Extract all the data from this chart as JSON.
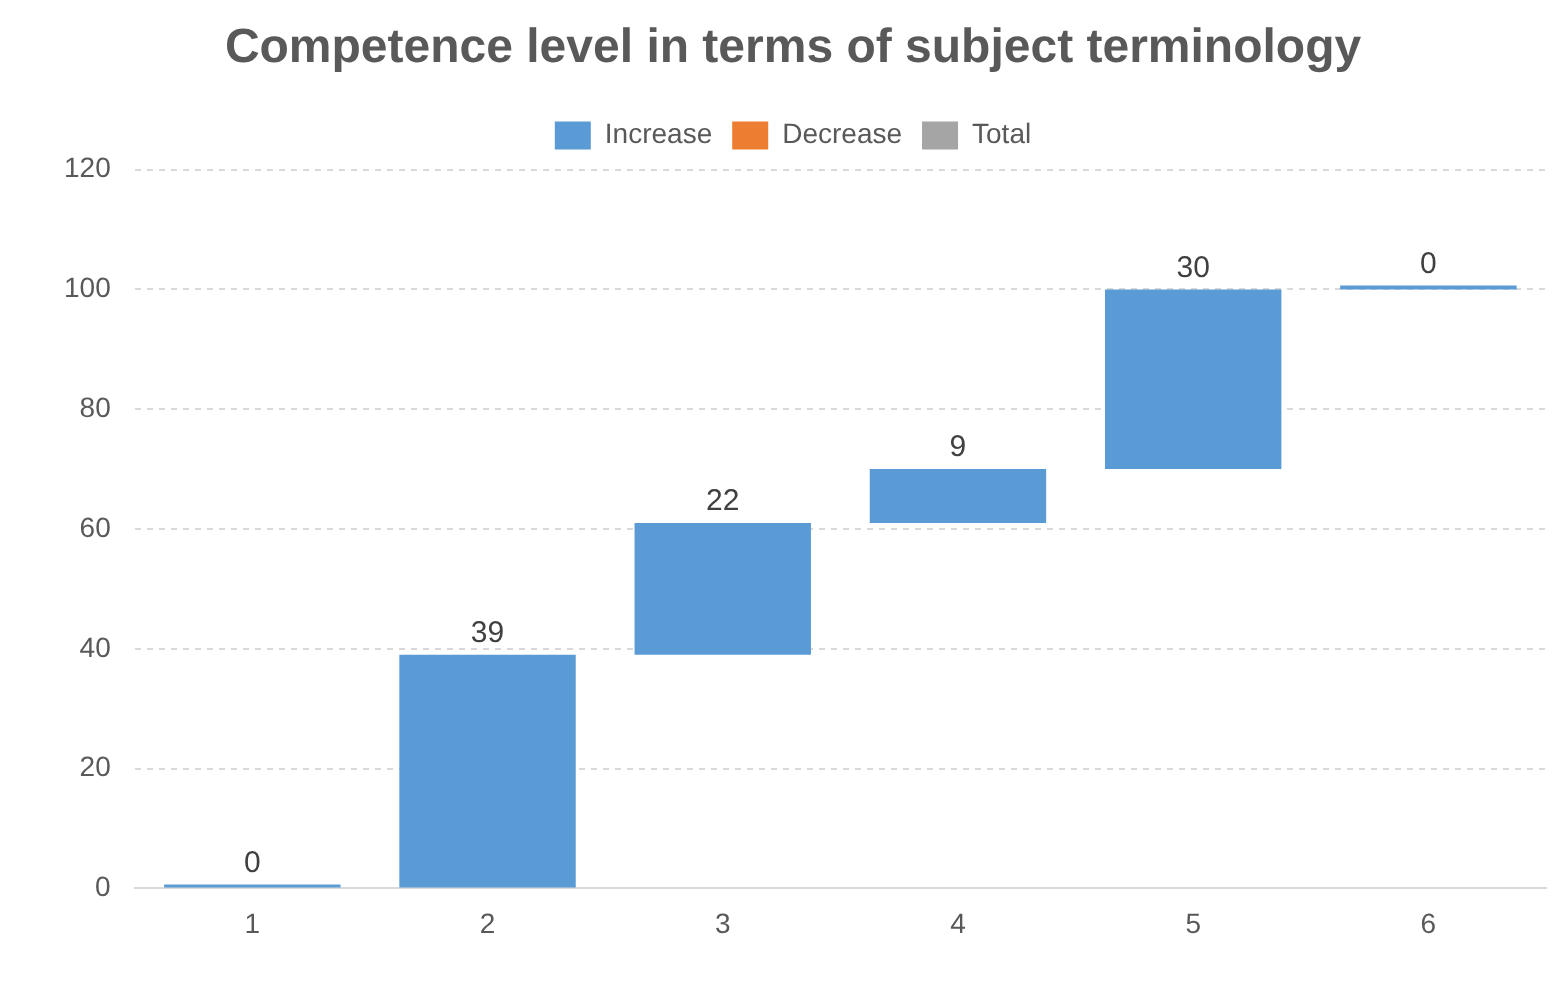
{
  "chart_data": {
    "type": "bar",
    "title": "Competence level in terms of subject terminology",
    "categories": [
      "1",
      "2",
      "3",
      "4",
      "5",
      "6"
    ],
    "series": [
      {
        "name": "Increase",
        "color": "#5b9bd5",
        "values": [
          0,
          39,
          22,
          9,
          30,
          0
        ],
        "base": [
          0,
          0,
          39,
          61,
          70,
          100
        ]
      },
      {
        "name": "Decrease",
        "color": "#ed7d31",
        "values": [
          null,
          null,
          null,
          null,
          null,
          null
        ]
      },
      {
        "name": "Total",
        "color": "#a5a5a5",
        "values": [
          null,
          null,
          null,
          null,
          null,
          null
        ]
      }
    ],
    "ylim": [
      0,
      120
    ],
    "yticks": [
      0,
      20,
      40,
      60,
      80,
      100,
      120
    ],
    "grid": "y",
    "legend": "top",
    "data_labels": true
  }
}
